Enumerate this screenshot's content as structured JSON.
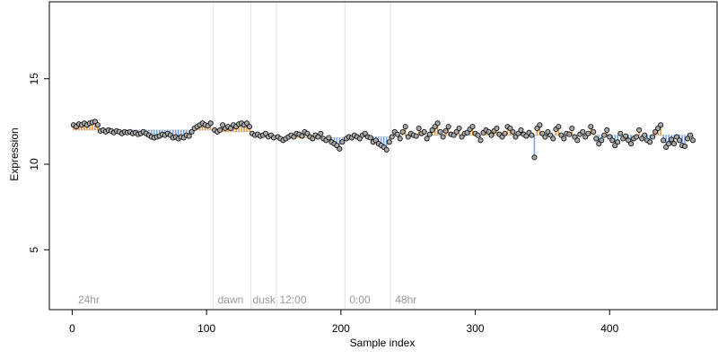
{
  "chart_data": {
    "type": "scatter",
    "title": "",
    "xlabel": "Sample index",
    "ylabel": "Expression",
    "xlim": [
      -17,
      480
    ],
    "ylim": [
      1.5,
      19.5
    ],
    "x_ticks": [
      0,
      100,
      200,
      300,
      400
    ],
    "x_tick_labels": [
      "0",
      "100",
      "200",
      "300",
      "400"
    ],
    "y_ticks": [
      5,
      10,
      15
    ],
    "y_tick_labels": [
      "5",
      "10",
      "15"
    ],
    "grid": false,
    "legend": "none",
    "region_boundaries": [
      105,
      133,
      152,
      203,
      237
    ],
    "region_labels": [
      {
        "text": "24hr",
        "x": 3
      },
      {
        "text": "dawn",
        "x": 107
      },
      {
        "text": "dusk",
        "x": 133
      },
      {
        "text": "12:00",
        "x": 153
      },
      {
        "text": "0:00",
        "x": 205
      },
      {
        "text": "48hr",
        "x": 239
      }
    ],
    "reference_levels": [
      {
        "x_start": 1,
        "x_end": 105,
        "value": 12.0
      },
      {
        "x_start": 105,
        "x_end": 133,
        "value": 11.9
      },
      {
        "x_start": 133,
        "x_end": 152,
        "value": 11.7
      },
      {
        "x_start": 152,
        "x_end": 203,
        "value": 11.55
      },
      {
        "x_start": 203,
        "x_end": 237,
        "value": 11.6
      },
      {
        "x_start": 237,
        "x_end": 460,
        "value": 11.7
      }
    ],
    "deviation_colors": {
      "above": "#e8963c",
      "below": "#7aa6e0"
    },
    "point_style": {
      "fill": "#a8a8a8",
      "stroke": "#000000"
    },
    "series": [
      {
        "values": [
          [
            1,
            12.3
          ],
          [
            3,
            12.2
          ],
          [
            5,
            12.35
          ],
          [
            7,
            12.3
          ],
          [
            9,
            12.4
          ],
          [
            11,
            12.3
          ],
          [
            13,
            12.4
          ],
          [
            15,
            12.45
          ],
          [
            17,
            12.5
          ],
          [
            19,
            12.3
          ],
          [
            21,
            11.95
          ],
          [
            23,
            12.0
          ],
          [
            25,
            11.9
          ],
          [
            27,
            12.0
          ],
          [
            29,
            11.95
          ],
          [
            31,
            11.85
          ],
          [
            33,
            11.95
          ],
          [
            35,
            11.9
          ],
          [
            37,
            11.8
          ],
          [
            39,
            11.9
          ],
          [
            41,
            11.85
          ],
          [
            43,
            11.9
          ],
          [
            45,
            11.8
          ],
          [
            47,
            11.85
          ],
          [
            49,
            11.75
          ],
          [
            51,
            11.8
          ],
          [
            53,
            11.9
          ],
          [
            55,
            11.8
          ],
          [
            57,
            11.7
          ],
          [
            59,
            11.6
          ],
          [
            61,
            11.55
          ],
          [
            63,
            11.6
          ],
          [
            65,
            11.65
          ],
          [
            67,
            11.75
          ],
          [
            69,
            11.7
          ],
          [
            71,
            11.8
          ],
          [
            73,
            11.7
          ],
          [
            75,
            11.55
          ],
          [
            77,
            11.6
          ],
          [
            79,
            11.5
          ],
          [
            81,
            11.6
          ],
          [
            83,
            11.55
          ],
          [
            85,
            11.7
          ],
          [
            87,
            11.65
          ],
          [
            89,
            11.9
          ],
          [
            91,
            12.1
          ],
          [
            93,
            12.2
          ],
          [
            95,
            12.3
          ],
          [
            97,
            12.4
          ],
          [
            99,
            12.3
          ],
          [
            101,
            12.25
          ],
          [
            103,
            12.4
          ],
          [
            106,
            12.0
          ],
          [
            108,
            11.9
          ],
          [
            110,
            12.0
          ],
          [
            112,
            12.3
          ],
          [
            114,
            12.1
          ],
          [
            116,
            12.2
          ],
          [
            118,
            12.1
          ],
          [
            120,
            12.3
          ],
          [
            122,
            12.2
          ],
          [
            124,
            12.35
          ],
          [
            126,
            12.4
          ],
          [
            128,
            12.3
          ],
          [
            130,
            12.4
          ],
          [
            132,
            12.2
          ],
          [
            134,
            11.8
          ],
          [
            136,
            11.7
          ],
          [
            138,
            11.75
          ],
          [
            140,
            11.65
          ],
          [
            142,
            11.7
          ],
          [
            144,
            11.8
          ],
          [
            146,
            11.6
          ],
          [
            148,
            11.7
          ],
          [
            150,
            11.55
          ],
          [
            153,
            11.6
          ],
          [
            155,
            11.5
          ],
          [
            157,
            11.4
          ],
          [
            159,
            11.5
          ],
          [
            161,
            11.6
          ],
          [
            163,
            11.7
          ],
          [
            165,
            11.6
          ],
          [
            167,
            11.8
          ],
          [
            169,
            11.75
          ],
          [
            171,
            11.65
          ],
          [
            173,
            11.9
          ],
          [
            175,
            11.8
          ],
          [
            177,
            11.6
          ],
          [
            179,
            11.5
          ],
          [
            181,
            11.7
          ],
          [
            183,
            11.6
          ],
          [
            185,
            11.8
          ],
          [
            187,
            11.5
          ],
          [
            189,
            11.4
          ],
          [
            191,
            11.55
          ],
          [
            193,
            11.3
          ],
          [
            195,
            11.2
          ],
          [
            197,
            11.1
          ],
          [
            199,
            10.9
          ],
          [
            201,
            11.3
          ],
          [
            204,
            11.5
          ],
          [
            206,
            11.6
          ],
          [
            208,
            11.55
          ],
          [
            210,
            11.7
          ],
          [
            212,
            11.6
          ],
          [
            214,
            11.5
          ],
          [
            216,
            11.7
          ],
          [
            218,
            11.8
          ],
          [
            220,
            11.6
          ],
          [
            222,
            11.55
          ],
          [
            224,
            11.3
          ],
          [
            226,
            11.4
          ],
          [
            228,
            11.2
          ],
          [
            230,
            11.1
          ],
          [
            232,
            11.0
          ],
          [
            234,
            10.85
          ],
          [
            236,
            11.3
          ],
          [
            238,
            11.6
          ],
          [
            240,
            11.9
          ],
          [
            242,
            11.75
          ],
          [
            244,
            11.5
          ],
          [
            246,
            11.9
          ],
          [
            248,
            12.2
          ],
          [
            250,
            11.6
          ],
          [
            252,
            11.8
          ],
          [
            254,
            11.7
          ],
          [
            256,
            11.65
          ],
          [
            258,
            12.1
          ],
          [
            260,
            11.8
          ],
          [
            262,
            11.9
          ],
          [
            264,
            11.5
          ],
          [
            266,
            11.75
          ],
          [
            268,
            12.0
          ],
          [
            270,
            12.2
          ],
          [
            272,
            12.4
          ],
          [
            274,
            11.9
          ],
          [
            276,
            11.6
          ],
          [
            278,
            11.95
          ],
          [
            280,
            12.2
          ],
          [
            282,
            11.75
          ],
          [
            284,
            11.7
          ],
          [
            286,
            11.9
          ],
          [
            288,
            12.1
          ],
          [
            290,
            11.6
          ],
          [
            292,
            11.8
          ],
          [
            294,
            11.85
          ],
          [
            296,
            12.05
          ],
          [
            298,
            12.2
          ],
          [
            300,
            11.8
          ],
          [
            302,
            11.7
          ],
          [
            304,
            11.4
          ],
          [
            306,
            11.85
          ],
          [
            308,
            12.0
          ],
          [
            310,
            11.9
          ],
          [
            312,
            11.7
          ],
          [
            314,
            11.95
          ],
          [
            316,
            12.1
          ],
          [
            318,
            11.75
          ],
          [
            320,
            11.6
          ],
          [
            322,
            11.8
          ],
          [
            324,
            12.2
          ],
          [
            326,
            12.1
          ],
          [
            328,
            11.9
          ],
          [
            330,
            11.6
          ],
          [
            332,
            11.8
          ],
          [
            334,
            12.0
          ],
          [
            336,
            11.75
          ],
          [
            338,
            11.65
          ],
          [
            340,
            11.85
          ],
          [
            342,
            11.7
          ],
          [
            344,
            10.4
          ],
          [
            346,
            12.1
          ],
          [
            348,
            12.3
          ],
          [
            350,
            11.8
          ],
          [
            352,
            11.6
          ],
          [
            354,
            11.9
          ],
          [
            356,
            11.7
          ],
          [
            358,
            11.5
          ],
          [
            360,
            12.05
          ],
          [
            362,
            12.2
          ],
          [
            364,
            11.7
          ],
          [
            366,
            11.5
          ],
          [
            368,
            11.8
          ],
          [
            370,
            11.75
          ],
          [
            372,
            12.1
          ],
          [
            374,
            11.6
          ],
          [
            376,
            11.4
          ],
          [
            378,
            11.75
          ],
          [
            380,
            11.9
          ],
          [
            382,
            11.6
          ],
          [
            384,
            11.8
          ],
          [
            386,
            12.2
          ],
          [
            388,
            11.9
          ],
          [
            390,
            11.5
          ],
          [
            392,
            11.2
          ],
          [
            394,
            11.4
          ],
          [
            396,
            11.7
          ],
          [
            398,
            12.0
          ],
          [
            400,
            11.6
          ],
          [
            402,
            11.4
          ],
          [
            404,
            11.1
          ],
          [
            406,
            11.3
          ],
          [
            408,
            11.8
          ],
          [
            410,
            11.5
          ],
          [
            412,
            11.65
          ],
          [
            414,
            11.4
          ],
          [
            416,
            11.2
          ],
          [
            418,
            11.5
          ],
          [
            420,
            11.6
          ],
          [
            422,
            12.0
          ],
          [
            424,
            11.5
          ],
          [
            426,
            11.7
          ],
          [
            428,
            11.4
          ],
          [
            430,
            11.3
          ],
          [
            432,
            11.6
          ],
          [
            434,
            11.9
          ],
          [
            436,
            12.1
          ],
          [
            438,
            12.3
          ],
          [
            440,
            11.4
          ],
          [
            442,
            11.0
          ],
          [
            444,
            11.2
          ],
          [
            446,
            11.45
          ],
          [
            448,
            11.2
          ],
          [
            450,
            11.6
          ],
          [
            452,
            11.4
          ],
          [
            454,
            11.1
          ],
          [
            456,
            11.05
          ],
          [
            458,
            11.5
          ],
          [
            460,
            11.7
          ],
          [
            462,
            11.4
          ]
        ]
      }
    ]
  }
}
